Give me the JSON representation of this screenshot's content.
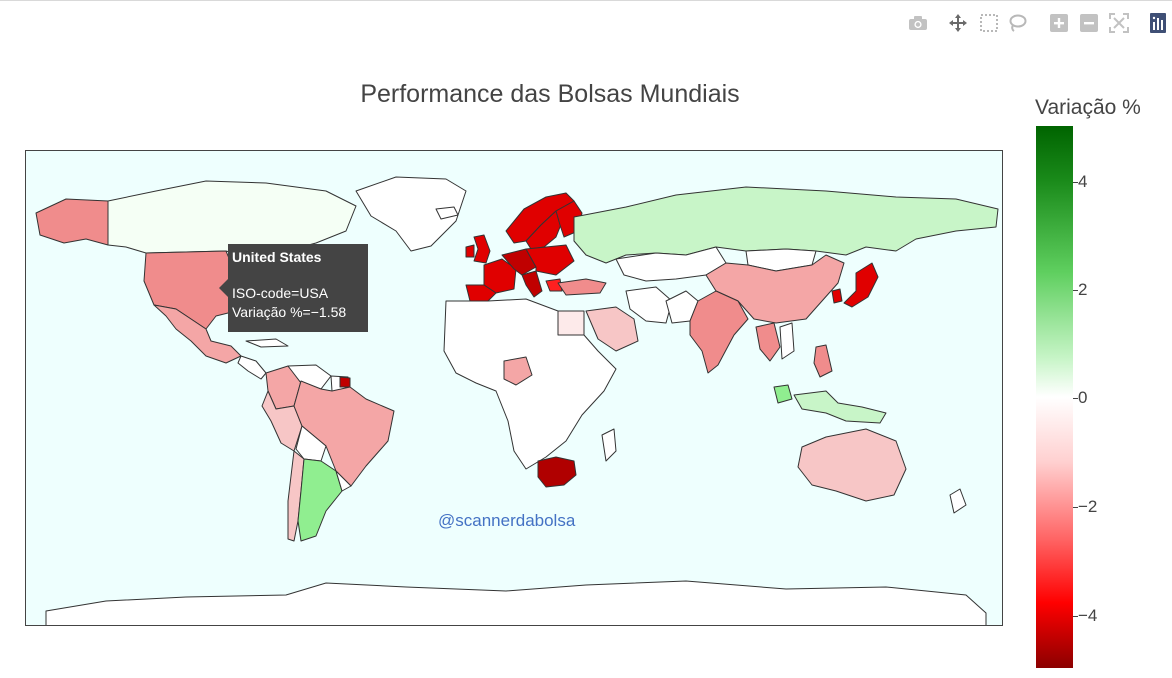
{
  "modebar": {
    "buttons": [
      {
        "name": "camera-icon",
        "title": "Download plot as a png"
      },
      {
        "name": "pan-icon",
        "title": "Pan"
      },
      {
        "name": "box-select-icon",
        "title": "Box Select"
      },
      {
        "name": "lasso-select-icon",
        "title": "Lasso Select"
      },
      {
        "name": "zoom-in-icon",
        "title": "Zoom in"
      },
      {
        "name": "zoom-out-icon",
        "title": "Zoom out"
      },
      {
        "name": "reset-view-icon",
        "title": "Reset view"
      },
      {
        "name": "plotly-logo-icon",
        "title": "Produced with Plotly"
      }
    ]
  },
  "title": "Performance das Bolsas Mundiais",
  "watermark": "@scannerdabolsa",
  "tooltip": {
    "country": "United States",
    "iso_line": "ISO-code=USA",
    "value_line": "Variação %=−1.58"
  },
  "colorbar": {
    "title": "Variação %",
    "ticks": [
      "4",
      "2",
      "0",
      "−2",
      "−4"
    ]
  },
  "colors": {
    "ocean": "#eefffe",
    "land_no_data": "#ffffff",
    "border": "#333333",
    "scale_max": "#006400",
    "scale_mid": "#ffffff",
    "scale_min": "#8b0000"
  },
  "chart_data": {
    "type": "choropleth",
    "title": "Performance das Bolsas Mundiais",
    "colorbar_title": "Variação %",
    "colorbar_range": [
      -5,
      5
    ],
    "locations": [
      {
        "name": "United States",
        "iso": "USA",
        "value": -1.58
      }
    ]
  }
}
